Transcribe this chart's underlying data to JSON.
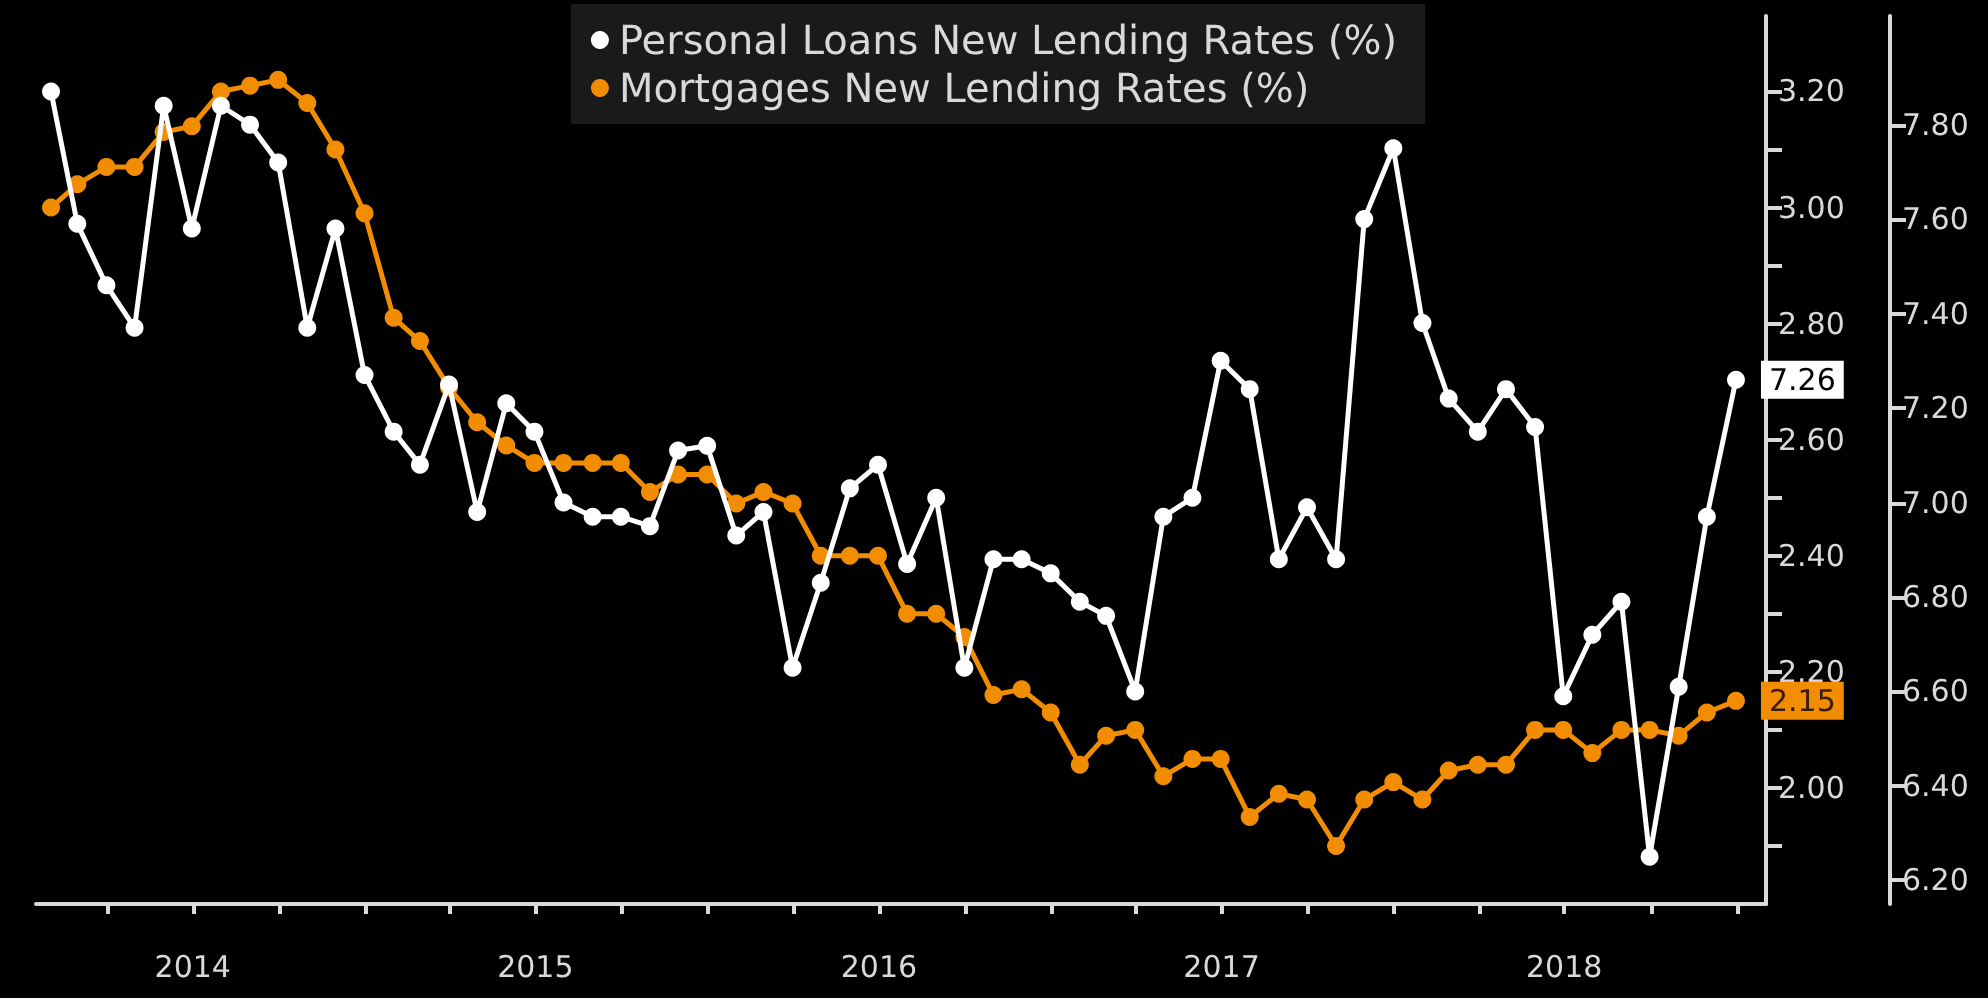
{
  "chart_data": {
    "type": "line",
    "x": [
      "2014-01-31",
      "2014-02-28",
      "2014-03-31",
      "2014-04-30",
      "2014-05-31",
      "2014-06-30",
      "2014-07-31",
      "2014-08-31",
      "2014-09-30",
      "2014-10-31",
      "2014-11-30",
      "2014-12-31",
      "2015-01-31",
      "2015-02-28",
      "2015-03-31",
      "2015-04-30",
      "2015-05-31",
      "2015-06-30",
      "2015-07-31",
      "2015-08-31",
      "2015-09-30",
      "2015-10-31",
      "2015-11-30",
      "2015-12-31",
      "2016-01-31",
      "2016-02-29",
      "2016-03-31",
      "2016-04-30",
      "2016-05-31",
      "2016-06-30",
      "2016-07-31",
      "2016-08-31",
      "2016-09-30",
      "2016-10-31",
      "2016-11-30",
      "2016-12-31",
      "2017-01-31",
      "2017-02-28",
      "2017-03-31",
      "2017-04-30",
      "2017-05-31",
      "2017-06-30",
      "2017-07-31",
      "2017-08-31",
      "2017-09-30",
      "2017-10-31",
      "2017-11-30",
      "2017-12-31",
      "2018-01-31",
      "2018-02-28",
      "2018-03-31",
      "2018-04-30",
      "2018-05-31",
      "2018-06-30",
      "2018-07-31",
      "2018-08-31",
      "2018-09-30",
      "2018-10-31",
      "2018-11-30",
      "2018-12-31"
    ],
    "series": [
      {
        "name": "Personal Loans New Lending Rates (%)",
        "color": "#ffffff",
        "axis": "y2",
        "values": [
          7.87,
          7.59,
          7.46,
          7.37,
          7.84,
          7.58,
          7.84,
          7.8,
          7.72,
          7.37,
          7.58,
          7.27,
          7.15,
          7.08,
          7.25,
          6.98,
          7.21,
          7.15,
          7.0,
          6.97,
          6.97,
          6.95,
          7.11,
          7.12,
          6.93,
          6.98,
          6.65,
          6.83,
          7.03,
          7.08,
          6.87,
          7.01,
          6.65,
          6.88,
          6.88,
          6.85,
          6.79,
          6.76,
          6.6,
          6.97,
          7.01,
          7.3,
          7.24,
          6.88,
          6.99,
          6.88,
          7.6,
          7.75,
          7.38,
          7.22,
          7.15,
          7.24,
          7.16,
          6.59,
          6.72,
          6.79,
          6.25,
          6.61,
          6.97,
          7.26
        ],
        "value_labels": [
          null,
          null,
          null,
          null,
          null,
          null,
          null,
          null,
          null,
          null,
          null,
          null,
          null,
          null,
          null,
          null,
          null,
          null,
          null,
          null,
          null,
          null,
          null,
          null,
          null,
          null,
          null,
          null,
          null,
          null,
          null,
          null,
          null,
          null,
          null,
          null,
          null,
          null,
          null,
          null,
          null,
          null,
          null,
          null,
          null,
          null,
          null,
          null,
          null,
          null,
          null,
          null,
          null,
          null,
          null,
          null,
          null,
          null,
          null,
          "7.26"
        ]
      },
      {
        "name": "Mortgages New Lending Rates (%)",
        "color": "#f28c00",
        "values": [
          3.0,
          3.04,
          3.07,
          3.07,
          3.13,
          3.14,
          3.2,
          3.21,
          3.22,
          3.18,
          3.1,
          2.99,
          2.81,
          2.77,
          2.69,
          2.63,
          2.59,
          2.56,
          2.56,
          2.56,
          2.56,
          2.51,
          2.54,
          2.54,
          2.49,
          2.51,
          2.49,
          2.4,
          2.4,
          2.4,
          2.3,
          2.3,
          2.26,
          2.16,
          2.17,
          2.13,
          2.04,
          2.09,
          2.1,
          2.02,
          2.05,
          2.05,
          1.95,
          1.99,
          1.98,
          1.9,
          1.98,
          2.01,
          1.98,
          2.03,
          2.04,
          2.04,
          2.1,
          2.1,
          2.06,
          2.1,
          2.1,
          2.09,
          2.13,
          2.15
        ],
        "value_labels": [
          null,
          null,
          null,
          null,
          null,
          null,
          null,
          null,
          null,
          null,
          null,
          null,
          null,
          null,
          null,
          null,
          null,
          null,
          null,
          null,
          null,
          null,
          null,
          null,
          null,
          null,
          null,
          null,
          null,
          null,
          null,
          null,
          null,
          null,
          null,
          null,
          null,
          null,
          null,
          null,
          null,
          null,
          null,
          null,
          null,
          null,
          null,
          null,
          null,
          null,
          null,
          null,
          null,
          null,
          null,
          null,
          null,
          null,
          null,
          "2.15"
        ]
      }
    ],
    "xlim": [
      "2014-01-15",
      "2019-02-01"
    ],
    "xticks": [
      {
        "value": "2014-04-01",
        "label": null
      },
      {
        "value": "2014-07-01",
        "label": "2014"
      },
      {
        "value": "2014-10-01",
        "label": null
      },
      {
        "value": "2015-01-01",
        "label": null
      },
      {
        "value": "2015-04-01",
        "label": null
      },
      {
        "value": "2015-07-01",
        "label": "2015"
      },
      {
        "value": "2015-10-01",
        "label": null
      },
      {
        "value": "2016-01-01",
        "label": null
      },
      {
        "value": "2016-04-01",
        "label": null
      },
      {
        "value": "2016-07-01",
        "label": "2016"
      },
      {
        "value": "2016-10-01",
        "label": null
      },
      {
        "value": "2017-01-01",
        "label": null
      },
      {
        "value": "2017-04-01",
        "label": null
      },
      {
        "value": "2017-07-01",
        "label": "2017"
      },
      {
        "value": "2017-10-01",
        "label": null
      },
      {
        "value": "2018-01-01",
        "label": null
      },
      {
        "value": "2018-04-01",
        "label": null
      },
      {
        "value": "2018-07-01",
        "label": "2018"
      },
      {
        "value": "2018-10-01",
        "label": null
      },
      {
        "value": "2019-01-01",
        "label": null
      }
    ],
    "ylim": [
      1.8,
      3.33
    ],
    "yticks": [
      {
        "value": 1.9,
        "label": null
      },
      {
        "value": 2.0,
        "label": "2.00"
      },
      {
        "value": 2.1,
        "label": null
      },
      {
        "value": 2.2,
        "label": "2.20"
      },
      {
        "value": 2.3,
        "label": null
      },
      {
        "value": 2.4,
        "label": "2.40"
      },
      {
        "value": 2.5,
        "label": null
      },
      {
        "value": 2.6,
        "label": "2.60"
      },
      {
        "value": 2.7,
        "label": null
      },
      {
        "value": 2.8,
        "label": "2.80"
      },
      {
        "value": 2.9,
        "label": null
      },
      {
        "value": 3.0,
        "label": "3.00"
      },
      {
        "value": 3.1,
        "label": null
      },
      {
        "value": 3.2,
        "label": "3.20"
      }
    ],
    "y2lim": [
      6.15,
      8.03
    ],
    "y2ticks": [
      {
        "value": 6.2,
        "label": "6.20"
      },
      {
        "value": 6.4,
        "label": "6.40"
      },
      {
        "value": 6.6,
        "label": "6.60"
      },
      {
        "value": 6.8,
        "label": "6.80"
      },
      {
        "value": 7.0,
        "label": "7.00"
      },
      {
        "value": 7.2,
        "label": "7.20"
      },
      {
        "value": 7.4,
        "label": "7.40"
      },
      {
        "value": 7.6,
        "label": "7.60"
      },
      {
        "value": 7.8,
        "label": "7.80"
      }
    ],
    "legend": "top",
    "grid": false,
    "marker": "circle",
    "line_style": "solid"
  }
}
